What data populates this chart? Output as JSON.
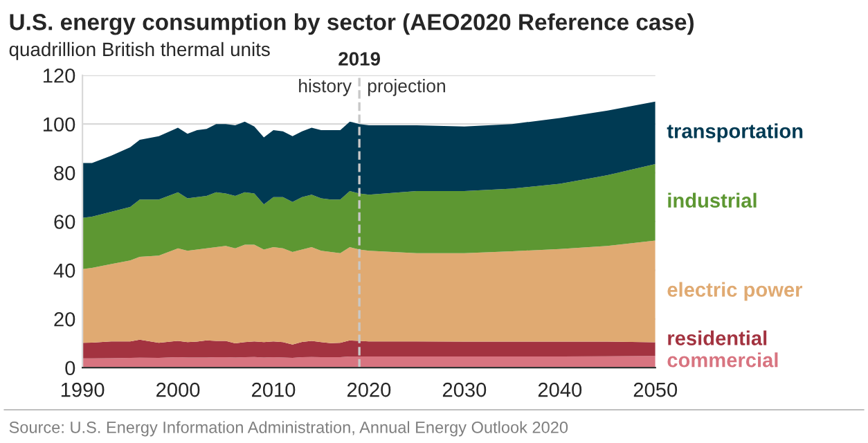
{
  "chart_data": {
    "type": "area",
    "stacked": true,
    "title": "U.S. energy consumption by sector (AEO2020 Reference case)",
    "subtitle": "quadrillion British thermal units",
    "x": [
      1990,
      1991,
      1993,
      1995,
      1996,
      1998,
      2000,
      2001,
      2002,
      2003,
      2004,
      2005,
      2006,
      2007,
      2008,
      2009,
      2010,
      2011,
      2012,
      2013,
      2014,
      2015,
      2016,
      2017,
      2018,
      2019,
      2020,
      2025,
      2030,
      2035,
      2040,
      2045,
      2050
    ],
    "series": [
      {
        "name": "commercial",
        "color": "#d87480",
        "values": [
          3.8,
          3.8,
          3.9,
          4.0,
          4.1,
          4.0,
          4.3,
          4.2,
          4.2,
          4.2,
          4.3,
          4.3,
          4.2,
          4.3,
          4.4,
          4.2,
          4.3,
          4.2,
          4.0,
          4.3,
          4.4,
          4.3,
          4.3,
          4.3,
          4.6,
          4.6,
          4.6,
          4.6,
          4.6,
          4.6,
          4.6,
          4.7,
          4.8
        ]
      },
      {
        "name": "residential",
        "color": "#a33340",
        "values": [
          6.4,
          6.5,
          6.9,
          6.8,
          7.4,
          6.2,
          6.7,
          6.3,
          6.5,
          7.0,
          6.7,
          6.7,
          5.8,
          6.2,
          6.4,
          6.3,
          6.5,
          6.3,
          5.5,
          6.3,
          6.6,
          6.2,
          5.8,
          5.9,
          6.6,
          6.4,
          6.2,
          6.2,
          6.1,
          6.1,
          6.1,
          6.0,
          5.6
        ]
      },
      {
        "name": "electric power",
        "color": "#e0aa72",
        "values": [
          30.3,
          30.7,
          31.7,
          33.2,
          34.0,
          35.8,
          38.0,
          37.5,
          37.8,
          37.8,
          38.5,
          39.0,
          39.0,
          40.0,
          39.7,
          38.0,
          38.7,
          38.5,
          38.0,
          37.9,
          38.5,
          37.5,
          37.4,
          36.8,
          38.3,
          37.5,
          37.2,
          36.2,
          36.3,
          37.1,
          38.0,
          39.3,
          41.8
        ]
      },
      {
        "name": "industrial",
        "color": "#5d9732",
        "values": [
          21.0,
          21.0,
          21.5,
          22.0,
          23.5,
          23.0,
          23.0,
          21.5,
          21.5,
          21.5,
          22.5,
          21.5,
          21.5,
          21.5,
          21.0,
          18.5,
          20.5,
          21.0,
          20.5,
          21.5,
          21.5,
          21.5,
          21.5,
          22.0,
          23.0,
          23.0,
          23.0,
          25.5,
          25.5,
          25.7,
          26.8,
          29.0,
          31.4
        ]
      },
      {
        "name": "transportation",
        "color": "#003a53",
        "values": [
          22.5,
          22.0,
          23.0,
          24.5,
          24.5,
          26.0,
          26.5,
          26.5,
          27.5,
          27.5,
          28.0,
          28.5,
          29.0,
          29.0,
          27.5,
          27.5,
          27.5,
          27.0,
          27.0,
          27.0,
          27.5,
          28.0,
          28.5,
          28.5,
          28.5,
          28.5,
          28.5,
          27.0,
          26.5,
          26.5,
          27.0,
          26.5,
          25.6
        ]
      }
    ],
    "xlim": [
      1990,
      2050
    ],
    "xticks": [
      1990,
      2000,
      2010,
      2020,
      2030,
      2040,
      2050
    ],
    "ylim": [
      0,
      120
    ],
    "yticks": [
      0,
      20,
      40,
      60,
      80,
      100,
      120
    ],
    "grid": "y",
    "ref_lines": [
      {
        "axis": "x",
        "value": 2019,
        "label": "2019",
        "color": "#c8c8c8",
        "line_style": "dashed"
      }
    ],
    "annotations": [
      {
        "text": "history",
        "x": 2019,
        "y": 115
      },
      {
        "text": "projection",
        "x": 2019,
        "y": 115
      },
      "Source: U.S. Energy Information Administration, Annual Energy Outlook 2020"
    ]
  }
}
